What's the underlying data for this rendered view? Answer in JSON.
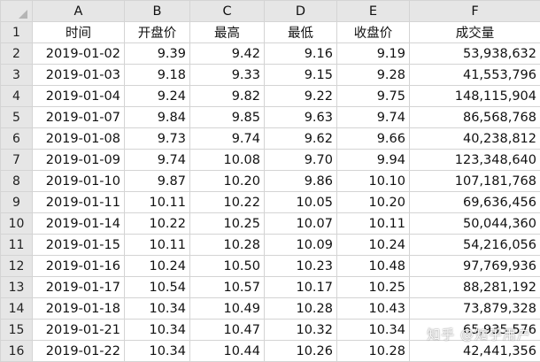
{
  "columns": [
    "A",
    "B",
    "C",
    "D",
    "E",
    "F"
  ],
  "header_row": {
    "num": "1",
    "cells": [
      "时间",
      "开盘价",
      "最高",
      "最低",
      "收盘价",
      "成交量"
    ]
  },
  "rows": [
    {
      "num": "2",
      "cells": [
        "2019-01-02",
        "9.39",
        "9.42",
        "9.16",
        "9.19",
        "53,938,632"
      ]
    },
    {
      "num": "3",
      "cells": [
        "2019-01-03",
        "9.18",
        "9.33",
        "9.15",
        "9.28",
        "41,553,796"
      ]
    },
    {
      "num": "4",
      "cells": [
        "2019-01-04",
        "9.24",
        "9.82",
        "9.22",
        "9.75",
        "148,115,904"
      ]
    },
    {
      "num": "5",
      "cells": [
        "2019-01-07",
        "9.84",
        "9.85",
        "9.63",
        "9.74",
        "86,568,768"
      ]
    },
    {
      "num": "6",
      "cells": [
        "2019-01-08",
        "9.73",
        "9.74",
        "9.62",
        "9.66",
        "40,238,812"
      ]
    },
    {
      "num": "7",
      "cells": [
        "2019-01-09",
        "9.74",
        "10.08",
        "9.70",
        "9.94",
        "123,348,640"
      ]
    },
    {
      "num": "8",
      "cells": [
        "2019-01-10",
        "9.87",
        "10.20",
        "9.86",
        "10.10",
        "107,181,768"
      ]
    },
    {
      "num": "9",
      "cells": [
        "2019-01-11",
        "10.11",
        "10.22",
        "10.05",
        "10.20",
        "69,636,456"
      ]
    },
    {
      "num": "10",
      "cells": [
        "2019-01-14",
        "10.22",
        "10.25",
        "10.07",
        "10.11",
        "50,044,360"
      ]
    },
    {
      "num": "11",
      "cells": [
        "2019-01-15",
        "10.11",
        "10.28",
        "10.09",
        "10.24",
        "54,216,056"
      ]
    },
    {
      "num": "12",
      "cells": [
        "2019-01-16",
        "10.24",
        "10.50",
        "10.23",
        "10.48",
        "97,769,936"
      ]
    },
    {
      "num": "13",
      "cells": [
        "2019-01-17",
        "10.54",
        "10.57",
        "10.17",
        "10.25",
        "88,281,192"
      ]
    },
    {
      "num": "14",
      "cells": [
        "2019-01-18",
        "10.34",
        "10.49",
        "10.28",
        "10.43",
        "73,879,328"
      ]
    },
    {
      "num": "15",
      "cells": [
        "2019-01-21",
        "10.34",
        "10.47",
        "10.32",
        "10.34",
        "65,935,576"
      ]
    },
    {
      "num": "16",
      "cells": [
        "2019-01-22",
        "10.34",
        "10.44",
        "10.26",
        "10.28",
        "42,441,356"
      ]
    }
  ],
  "watermark": "知乎 @知乎用户"
}
